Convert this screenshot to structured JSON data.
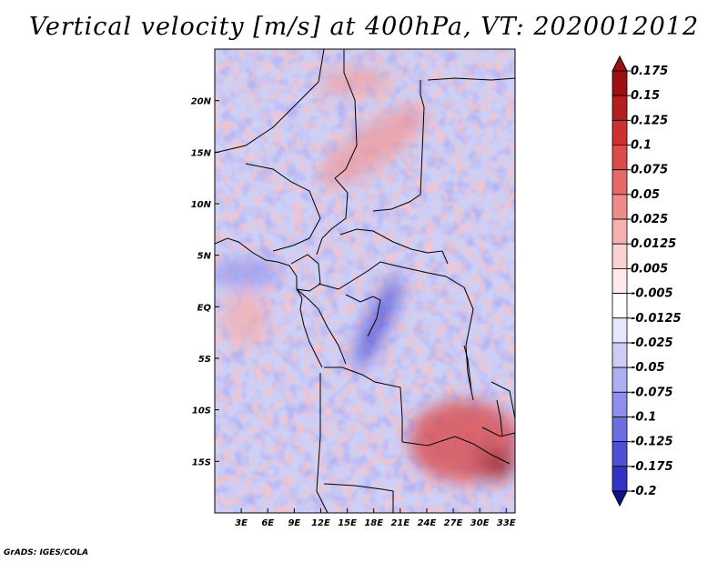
{
  "title": "Vertical velocity [m/s] at 400hPa, VT: 2020012012",
  "credit": "GrADS: IGES/COLA",
  "chart_data": {
    "type": "heatmap",
    "variable": "Vertical velocity",
    "units": "m/s",
    "level": "400hPa",
    "valid_time": "2020012012",
    "x_range": [
      0,
      34
    ],
    "y_range": [
      -20,
      25
    ],
    "x_ticks": [
      {
        "value": 3,
        "label": "3E"
      },
      {
        "value": 6,
        "label": "6E"
      },
      {
        "value": 9,
        "label": "9E"
      },
      {
        "value": 12,
        "label": "12E"
      },
      {
        "value": 15,
        "label": "15E"
      },
      {
        "value": 18,
        "label": "18E"
      },
      {
        "value": 21,
        "label": "21E"
      },
      {
        "value": 24,
        "label": "24E"
      },
      {
        "value": 27,
        "label": "27E"
      },
      {
        "value": 30,
        "label": "30E"
      },
      {
        "value": 33,
        "label": "33E"
      }
    ],
    "y_ticks": [
      {
        "value": 20,
        "label": "20N"
      },
      {
        "value": 15,
        "label": "15N"
      },
      {
        "value": 10,
        "label": "10N"
      },
      {
        "value": 5,
        "label": "5N"
      },
      {
        "value": 0,
        "label": "EQ"
      },
      {
        "value": -5,
        "label": "5S"
      },
      {
        "value": -10,
        "label": "10S"
      },
      {
        "value": -15,
        "label": "15S"
      }
    ],
    "colorbar": {
      "levels": [
        "0.175",
        "0.15",
        "0.125",
        "0.1",
        "0.075",
        "0.05",
        "0.025",
        "0.0125",
        "0.005",
        "-0.005",
        "-0.0125",
        "-0.025",
        "-0.05",
        "-0.075",
        "-0.1",
        "-0.125",
        "-0.175",
        "-0.2"
      ],
      "colors": [
        "#9e1010",
        "#b51e1e",
        "#cc3030",
        "#dc4a4a",
        "#e66a6a",
        "#ee8c8c",
        "#f5b0b0",
        "#fad0d0",
        "#fdeaea",
        "#ffffff",
        "#e6e6fd",
        "#cdcdf8",
        "#aeaef2",
        "#8e8eeb",
        "#6e6ee2",
        "#5050d6",
        "#3232c4",
        "#1e1eaa",
        "#10108c"
      ]
    }
  }
}
